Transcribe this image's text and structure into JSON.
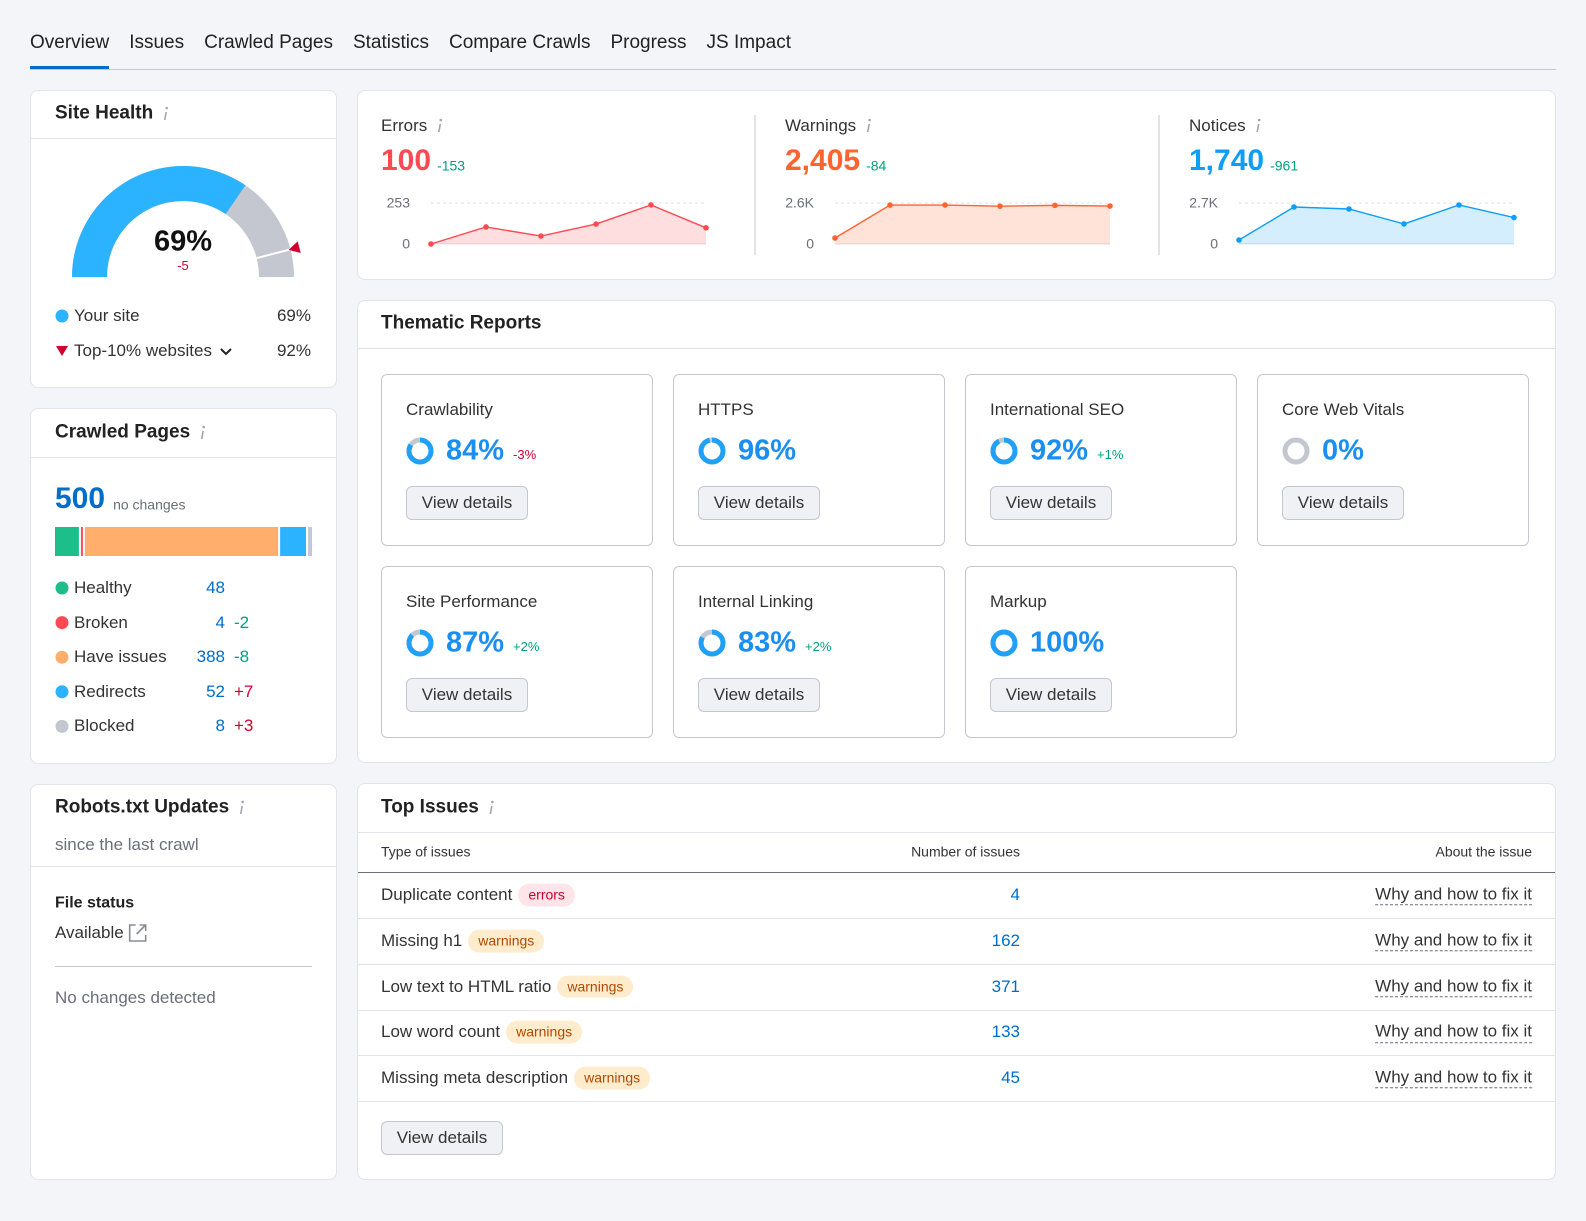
{
  "tabs": {
    "items": [
      "Overview",
      "Issues",
      "Crawled Pages",
      "Statistics",
      "Compare Crawls",
      "Progress",
      "JS Impact"
    ],
    "active": 0
  },
  "site_health": {
    "title": "Site Health",
    "score": {
      "value": 69,
      "label": "69%"
    },
    "change": "-5",
    "legend": [
      {
        "name": "Your site",
        "value": {
          "value": 69,
          "label": "69%"
        },
        "color": "#2bb3ff"
      },
      {
        "name": "Top-10% websites",
        "value": {
          "value": 92,
          "label": "92%"
        },
        "color": "#d1002f"
      }
    ]
  },
  "issue_summary": [
    {
      "label": "Errors",
      "total": "100",
      "change": "-153",
      "color": "#ff4953",
      "chart": {
        "ylim": [
          0,
          253
        ],
        "yticks": [
          0,
          253
        ],
        "values": [
          0,
          105,
          49,
          123,
          241,
          100
        ]
      }
    },
    {
      "label": "Warnings",
      "total": "2,405",
      "change": "-84",
      "color": "#ff642d",
      "chart": {
        "ylim": [
          0,
          2600
        ],
        "yticks": [
          0,
          {
            "value": 2600,
            "label": "2.6K"
          }
        ],
        "values": [
          380,
          2470,
          2470,
          2400,
          2450,
          2405
        ]
      }
    },
    {
      "label": "Notices",
      "total": "1,740",
      "change": "-961",
      "color": "#0f9ef5",
      "chart": {
        "ylim": [
          0,
          2700
        ],
        "yticks": [
          0,
          {
            "value": 2700,
            "label": "2.7K"
          }
        ],
        "values": [
          263,
          2437,
          2305,
          1320,
          2568,
          1740
        ]
      }
    }
  ],
  "thematic_reports": {
    "title": "Thematic Reports",
    "button": "View details",
    "reports": [
      {
        "name": "Crawlability",
        "score": {
          "value": 84,
          "label": "84%"
        },
        "change": "-3%"
      },
      {
        "name": "HTTPS",
        "score": {
          "value": 96,
          "label": "96%"
        }
      },
      {
        "name": "International SEO",
        "score": {
          "value": 92,
          "label": "92%"
        },
        "change": "+1%"
      },
      {
        "name": "Core Web Vitals",
        "score": {
          "value": 0,
          "label": "0%"
        }
      },
      {
        "name": "Site Performance",
        "score": {
          "value": 87,
          "label": "87%"
        },
        "change": "+2%"
      },
      {
        "name": "Internal Linking",
        "score": {
          "value": 83,
          "label": "83%"
        },
        "change": "+2%"
      },
      {
        "name": "Markup",
        "score": {
          "value": 100,
          "label": "100%"
        }
      }
    ]
  },
  "crawled_pages": {
    "title": "Crawled Pages",
    "total": "500",
    "note": "no changes",
    "rows": [
      {
        "name": "Healthy",
        "value": 48,
        "color": "#1ebe8b"
      },
      {
        "name": "Broken",
        "value": 4,
        "change": "-2",
        "color": "#ff4953"
      },
      {
        "name": "Have issues",
        "value": 388,
        "change": "-8",
        "color": "#ffae6b"
      },
      {
        "name": "Redirects",
        "value": 52,
        "change": "+7",
        "color": "#2bb3ff"
      },
      {
        "name": "Blocked",
        "value": 8,
        "change": "+3",
        "color": "#c4c7cf"
      }
    ]
  },
  "robots_txt": {
    "title": "Robots.txt Updates",
    "subtitle": "since the last crawl",
    "file_status": {
      "label": "File status",
      "value": "Available"
    },
    "message": "No changes detected"
  },
  "top_issues": {
    "title": "Top Issues",
    "columns": [
      "Type of issues",
      "Number of issues",
      "About the issue"
    ],
    "tag_styles": {
      "errors": {
        "color": "#d1002f",
        "background": "#ffe5ea"
      },
      "warnings": {
        "color": "#b24800",
        "background": "#ffeccc"
      }
    },
    "rows": [
      {
        "issue": "Duplicate content",
        "tag": "errors",
        "count": 4,
        "link": "Why and how to fix it"
      },
      {
        "issue": "Missing h1",
        "tag": "warnings",
        "count": 162,
        "link": "Why and how to fix it"
      },
      {
        "issue": "Low text to HTML ratio",
        "tag": "warnings",
        "count": 371,
        "link": "Why and how to fix it"
      },
      {
        "issue": "Low word count",
        "tag": "warnings",
        "count": 133,
        "link": "Why and how to fix it"
      },
      {
        "issue": "Missing meta description",
        "tag": "warnings",
        "count": 45,
        "link": "Why and how to fix it"
      }
    ],
    "button": "View details"
  }
}
